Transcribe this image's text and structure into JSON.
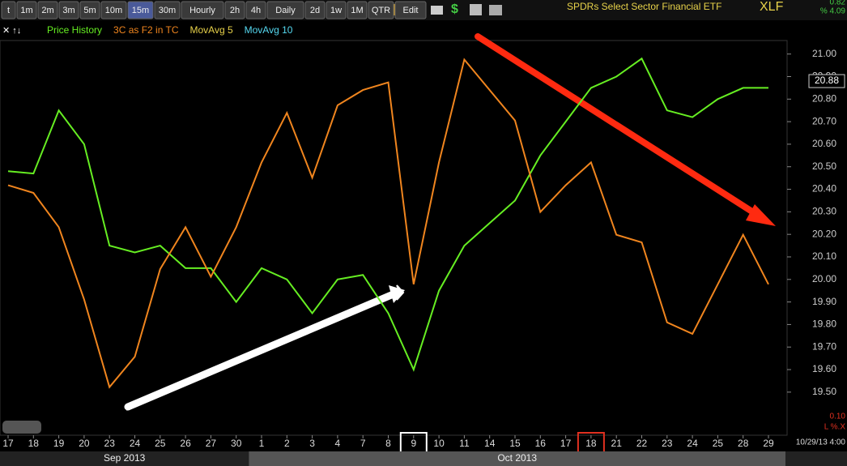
{
  "toolbar": {
    "buttons": [
      "t",
      "1m",
      "2m",
      "3m",
      "5m",
      "10m",
      "15m",
      "30m",
      "Hourly",
      "2h",
      "4h",
      "Daily",
      "2d",
      "1w",
      "1M",
      "QTR",
      "Edit"
    ],
    "selected_index": 6
  },
  "header": {
    "title": "SPDRs Select Sector Financial ETF",
    "symbol": "XLF",
    "change": "0.82",
    "change_pct": "% 4.09"
  },
  "chart_data": {
    "type": "line",
    "categories": [
      "17",
      "18",
      "19",
      "20",
      "23",
      "24",
      "25",
      "26",
      "27",
      "30",
      "1",
      "2",
      "3",
      "4",
      "7",
      "8",
      "9",
      "10",
      "11",
      "14",
      "15",
      "16",
      "17",
      "18",
      "21",
      "22",
      "23",
      "24",
      "25",
      "28",
      "29"
    ],
    "months": [
      {
        "label": "Sep 2013",
        "from": 0,
        "to": 9
      },
      {
        "label": "Oct 2013",
        "from": 10,
        "to": 30
      }
    ],
    "highlighted": [
      {
        "index": 16,
        "color": "#ffffff"
      },
      {
        "index": 23,
        "color": "#e03020"
      }
    ],
    "series": [
      {
        "name": "Price History",
        "color": "#66ee22",
        "values": [
          20.48,
          20.47,
          20.75,
          20.6,
          20.15,
          20.12,
          20.15,
          20.05,
          20.05,
          19.9,
          20.05,
          20.0,
          19.85,
          20.0,
          20.02,
          19.85,
          19.6,
          19.95,
          20.15,
          20.25,
          20.35,
          20.55,
          20.7,
          20.85,
          20.9,
          20.98,
          20.75,
          20.72,
          20.8,
          20.85,
          20.85
        ]
      },
      {
        "name": "3C as F2 in TC",
        "color": "#f0851e",
        "axis": "y2",
        "values": [
          62,
          60,
          51,
          32,
          9,
          17,
          40,
          51,
          38,
          51,
          68,
          81,
          64,
          83,
          87,
          89,
          36,
          68,
          95,
          87,
          79,
          55,
          62,
          68,
          49,
          47,
          26,
          23,
          36,
          49,
          36
        ]
      }
    ],
    "indicators": [
      {
        "name": "MovAvg 5",
        "color": "#e8d24a"
      },
      {
        "name": "MovAvg 10",
        "color": "#55d8f0"
      }
    ],
    "ylim": [
      19.37,
      21.06
    ],
    "yticks": [
      {
        "value": 19.5,
        "label": "19.50"
      },
      {
        "value": 19.6,
        "label": "19.60"
      },
      {
        "value": 19.7,
        "label": "19.70"
      },
      {
        "value": 19.8,
        "label": "19.80"
      },
      {
        "value": 19.9,
        "label": "19.90"
      },
      {
        "value": 20,
        "label": "20.00"
      },
      {
        "value": 20.1,
        "label": "20.10"
      },
      {
        "value": 20.2,
        "label": "20.20"
      },
      {
        "value": 20.3,
        "label": "20.30"
      },
      {
        "value": 20.4,
        "label": "20.40"
      },
      {
        "value": 20.5,
        "label": "20.50"
      },
      {
        "value": 20.6,
        "label": "20.60"
      },
      {
        "value": 20.7,
        "label": "20.70"
      },
      {
        "value": 20.8,
        "label": "20.80"
      },
      {
        "value": 20.9,
        "label": "20.90"
      },
      {
        "value": 21,
        "label": "21.00"
      }
    ],
    "y2lim": [
      0,
      100
    ],
    "last_price": {
      "value": 20.88,
      "label": "20.88"
    },
    "indicator_scale": "0.10",
    "indicator_flags": "L %.X",
    "timestamp": "10/29/13 4:00"
  }
}
